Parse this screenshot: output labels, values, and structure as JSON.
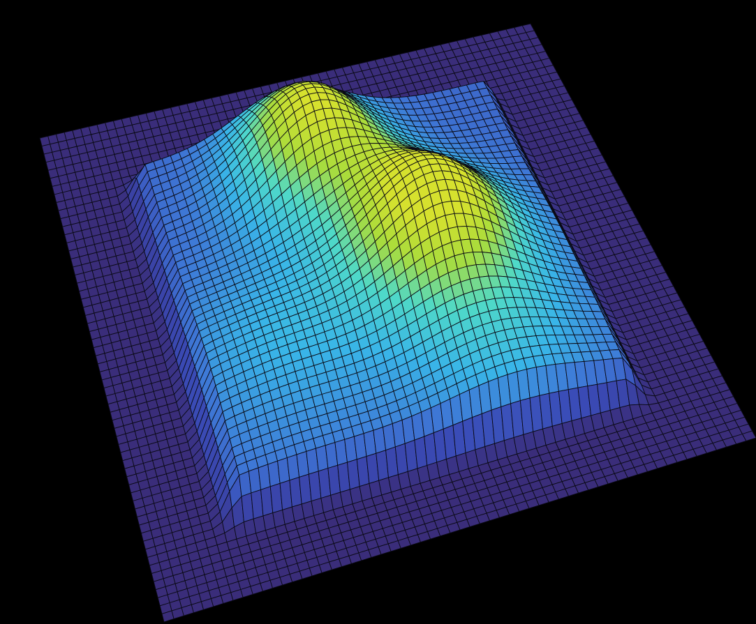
{
  "chart_data": {
    "type": "surface",
    "grid_resolution": [
      60,
      60
    ],
    "x_range": [
      0,
      1
    ],
    "y_range": [
      0,
      1
    ],
    "z_range": [
      0,
      1
    ],
    "base_plateau": {
      "level": 0.28,
      "extent_x": [
        0.12,
        0.88
      ],
      "extent_y": [
        0.12,
        0.88
      ]
    },
    "peaks": [
      {
        "x": 0.45,
        "y": 0.28,
        "height": 0.7,
        "spread": 0.1
      },
      {
        "x": 0.6,
        "y": 0.52,
        "height": 0.78,
        "spread": 0.11
      },
      {
        "x": 0.3,
        "y": 0.62,
        "height": 0.22,
        "spread": 0.14
      },
      {
        "x": 0.65,
        "y": 0.75,
        "height": 0.25,
        "spread": 0.12
      }
    ],
    "colormap": [
      "#3a2d7a",
      "#3a4bb6",
      "#3e78d6",
      "#39b5e8",
      "#4fd9c8",
      "#a9dc3c",
      "#d6e12e"
    ],
    "mesh_edge_color": "#0a0a14",
    "background_color": "#000000"
  }
}
